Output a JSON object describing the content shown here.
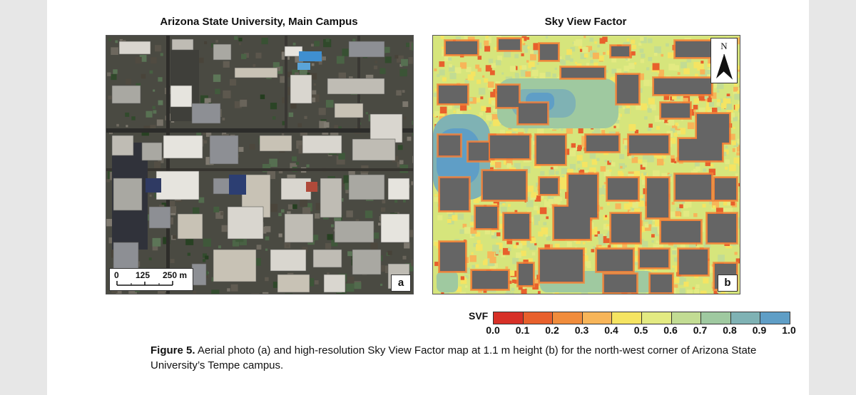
{
  "panel_a": {
    "title": "Arizona State University, Main Campus",
    "letter": "a",
    "scale_labels": [
      "0",
      "125",
      "250 m"
    ]
  },
  "panel_b": {
    "title": "Sky View Factor",
    "letter": "b",
    "north_label": "N"
  },
  "legend": {
    "title": "SVF",
    "ticks": [
      "0.0",
      "0.1",
      "0.2",
      "0.3",
      "0.4",
      "0.5",
      "0.6",
      "0.7",
      "0.8",
      "0.9",
      "1.0"
    ],
    "colors": [
      "#d73027",
      "#e8602c",
      "#f08c3c",
      "#f7b559",
      "#f5e462",
      "#e3ea82",
      "#c2dc93",
      "#9fc9a0",
      "#7fb2b4",
      "#5f9ec6",
      "#3b84cc"
    ]
  },
  "caption": {
    "label": "Figure 5.",
    "text": " Aerial photo (a) and high-resolution Sky View Factor map at 1.1 m height (b) for the north-west corner of Arizona State University’s Tempe campus."
  }
}
